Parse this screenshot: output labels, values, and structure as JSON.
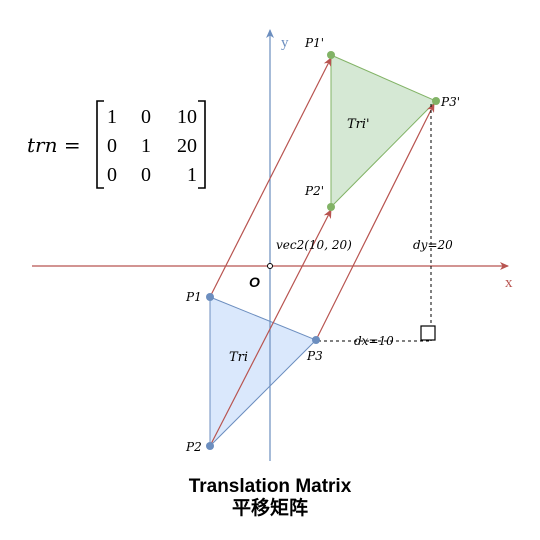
{
  "axes": {
    "x_label": "x",
    "y_label": "y",
    "origin_label": "O"
  },
  "matrix": {
    "lhs": "trn =",
    "rows": [
      [
        "1",
        "0",
        "10"
      ],
      [
        "0",
        "1",
        "20"
      ],
      [
        "0",
        "0",
        "1"
      ]
    ]
  },
  "original": {
    "label": "Tri",
    "points": [
      "P1",
      "P2",
      "P3"
    ],
    "fill": "#dae8fc",
    "stroke": "#6c8ebf"
  },
  "translated": {
    "label": "Tri'",
    "points": [
      "P1'",
      "P2'",
      "P3'"
    ],
    "fill": "#d5e8d4",
    "stroke": "#82b366"
  },
  "vector_label": "vec2(10, 20)",
  "dx_label": "dx=10",
  "dy_label": "dy=20",
  "colors": {
    "axis_x": "#b85450",
    "axis_y": "#6c8ebf",
    "arrow": "#b85450"
  },
  "caption": {
    "line1": "Translation Matrix",
    "line2": "平移矩阵"
  }
}
